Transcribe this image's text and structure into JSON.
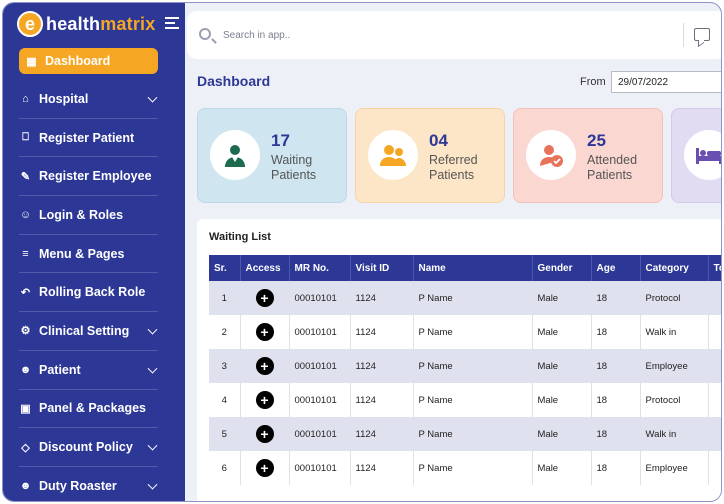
{
  "app": {
    "logo_letter": "e",
    "logo_name_a": "health",
    "logo_name_b": "matrix"
  },
  "sidebar": {
    "items": [
      {
        "label": "Dashboard",
        "icon": "grid-icon",
        "has_chevron": false,
        "active": true
      },
      {
        "label": "Hospital",
        "icon": "hospital-icon",
        "has_chevron": true
      },
      {
        "label": "Register Patient",
        "icon": "briefcase-icon",
        "has_chevron": false
      },
      {
        "label": "Register Employee",
        "icon": "edit-icon",
        "has_chevron": false
      },
      {
        "label": "Login & Roles",
        "icon": "users-icon",
        "has_chevron": false
      },
      {
        "label": "Menu & Pages",
        "icon": "list-icon",
        "has_chevron": false
      },
      {
        "label": "Rolling Back Role",
        "icon": "undo-icon",
        "has_chevron": false
      },
      {
        "label": "Clinical Setting",
        "icon": "gear-icon",
        "has_chevron": true
      },
      {
        "label": "Patient",
        "icon": "user-icon",
        "has_chevron": true
      },
      {
        "label": "Panel & Packages",
        "icon": "package-icon",
        "has_chevron": false
      },
      {
        "label": "Discount Policy",
        "icon": "tag-icon",
        "has_chevron": true
      },
      {
        "label": "Duty Roaster",
        "icon": "user-clock-icon",
        "has_chevron": true
      }
    ]
  },
  "topbar": {
    "search_placeholder": "Search in app.."
  },
  "main": {
    "title": "Dashboard",
    "from_label": "From",
    "from_date": "29/07/2022"
  },
  "cards": [
    {
      "count": "17",
      "line1": "Waiting",
      "line2": "Patients",
      "icon": "doctor-icon",
      "bg": "#cfe6f1",
      "border": "#b9d9e8"
    },
    {
      "count": "04",
      "line1": "Referred",
      "line2": "Patients",
      "icon": "referral-icon",
      "bg": "#fde6c8",
      "border": "#f6d3a5"
    },
    {
      "count": "25",
      "line1": "Attended",
      "line2": "Patients",
      "icon": "attended-icon",
      "bg": "#fbd7d2",
      "border": "#f3c0b8"
    },
    {
      "count": "",
      "line1": "",
      "line2": "",
      "icon": "bed-icon",
      "bg": "#e2dcf3",
      "border": "#d2c9ec"
    }
  ],
  "waiting_list": {
    "title": "Waiting List",
    "columns": [
      "Sr.",
      "Access",
      "MR No.",
      "Visit ID",
      "Name",
      "Gender",
      "Age",
      "Category",
      "To"
    ],
    "rows": [
      {
        "sr": "1",
        "mr": "00010101",
        "visit": "1124",
        "name": "P Name",
        "gender": "Male",
        "age": "18",
        "category": "Protocol"
      },
      {
        "sr": "2",
        "mr": "00010101",
        "visit": "1124",
        "name": "P Name",
        "gender": "Male",
        "age": "18",
        "category": "Walk in"
      },
      {
        "sr": "3",
        "mr": "00010101",
        "visit": "1124",
        "name": "P Name",
        "gender": "Male",
        "age": "18",
        "category": "Employee"
      },
      {
        "sr": "4",
        "mr": "00010101",
        "visit": "1124",
        "name": "P Name",
        "gender": "Male",
        "age": "18",
        "category": "Protocol"
      },
      {
        "sr": "5",
        "mr": "00010101",
        "visit": "1124",
        "name": "P Name",
        "gender": "Male",
        "age": "18",
        "category": "Walk in"
      },
      {
        "sr": "6",
        "mr": "00010101",
        "visit": "1124",
        "name": "P Name",
        "gender": "Male",
        "age": "18",
        "category": "Employee"
      }
    ]
  },
  "colors": {
    "sidebar": "#2c3796",
    "accent": "#f5a623",
    "primary": "#2c3796"
  }
}
